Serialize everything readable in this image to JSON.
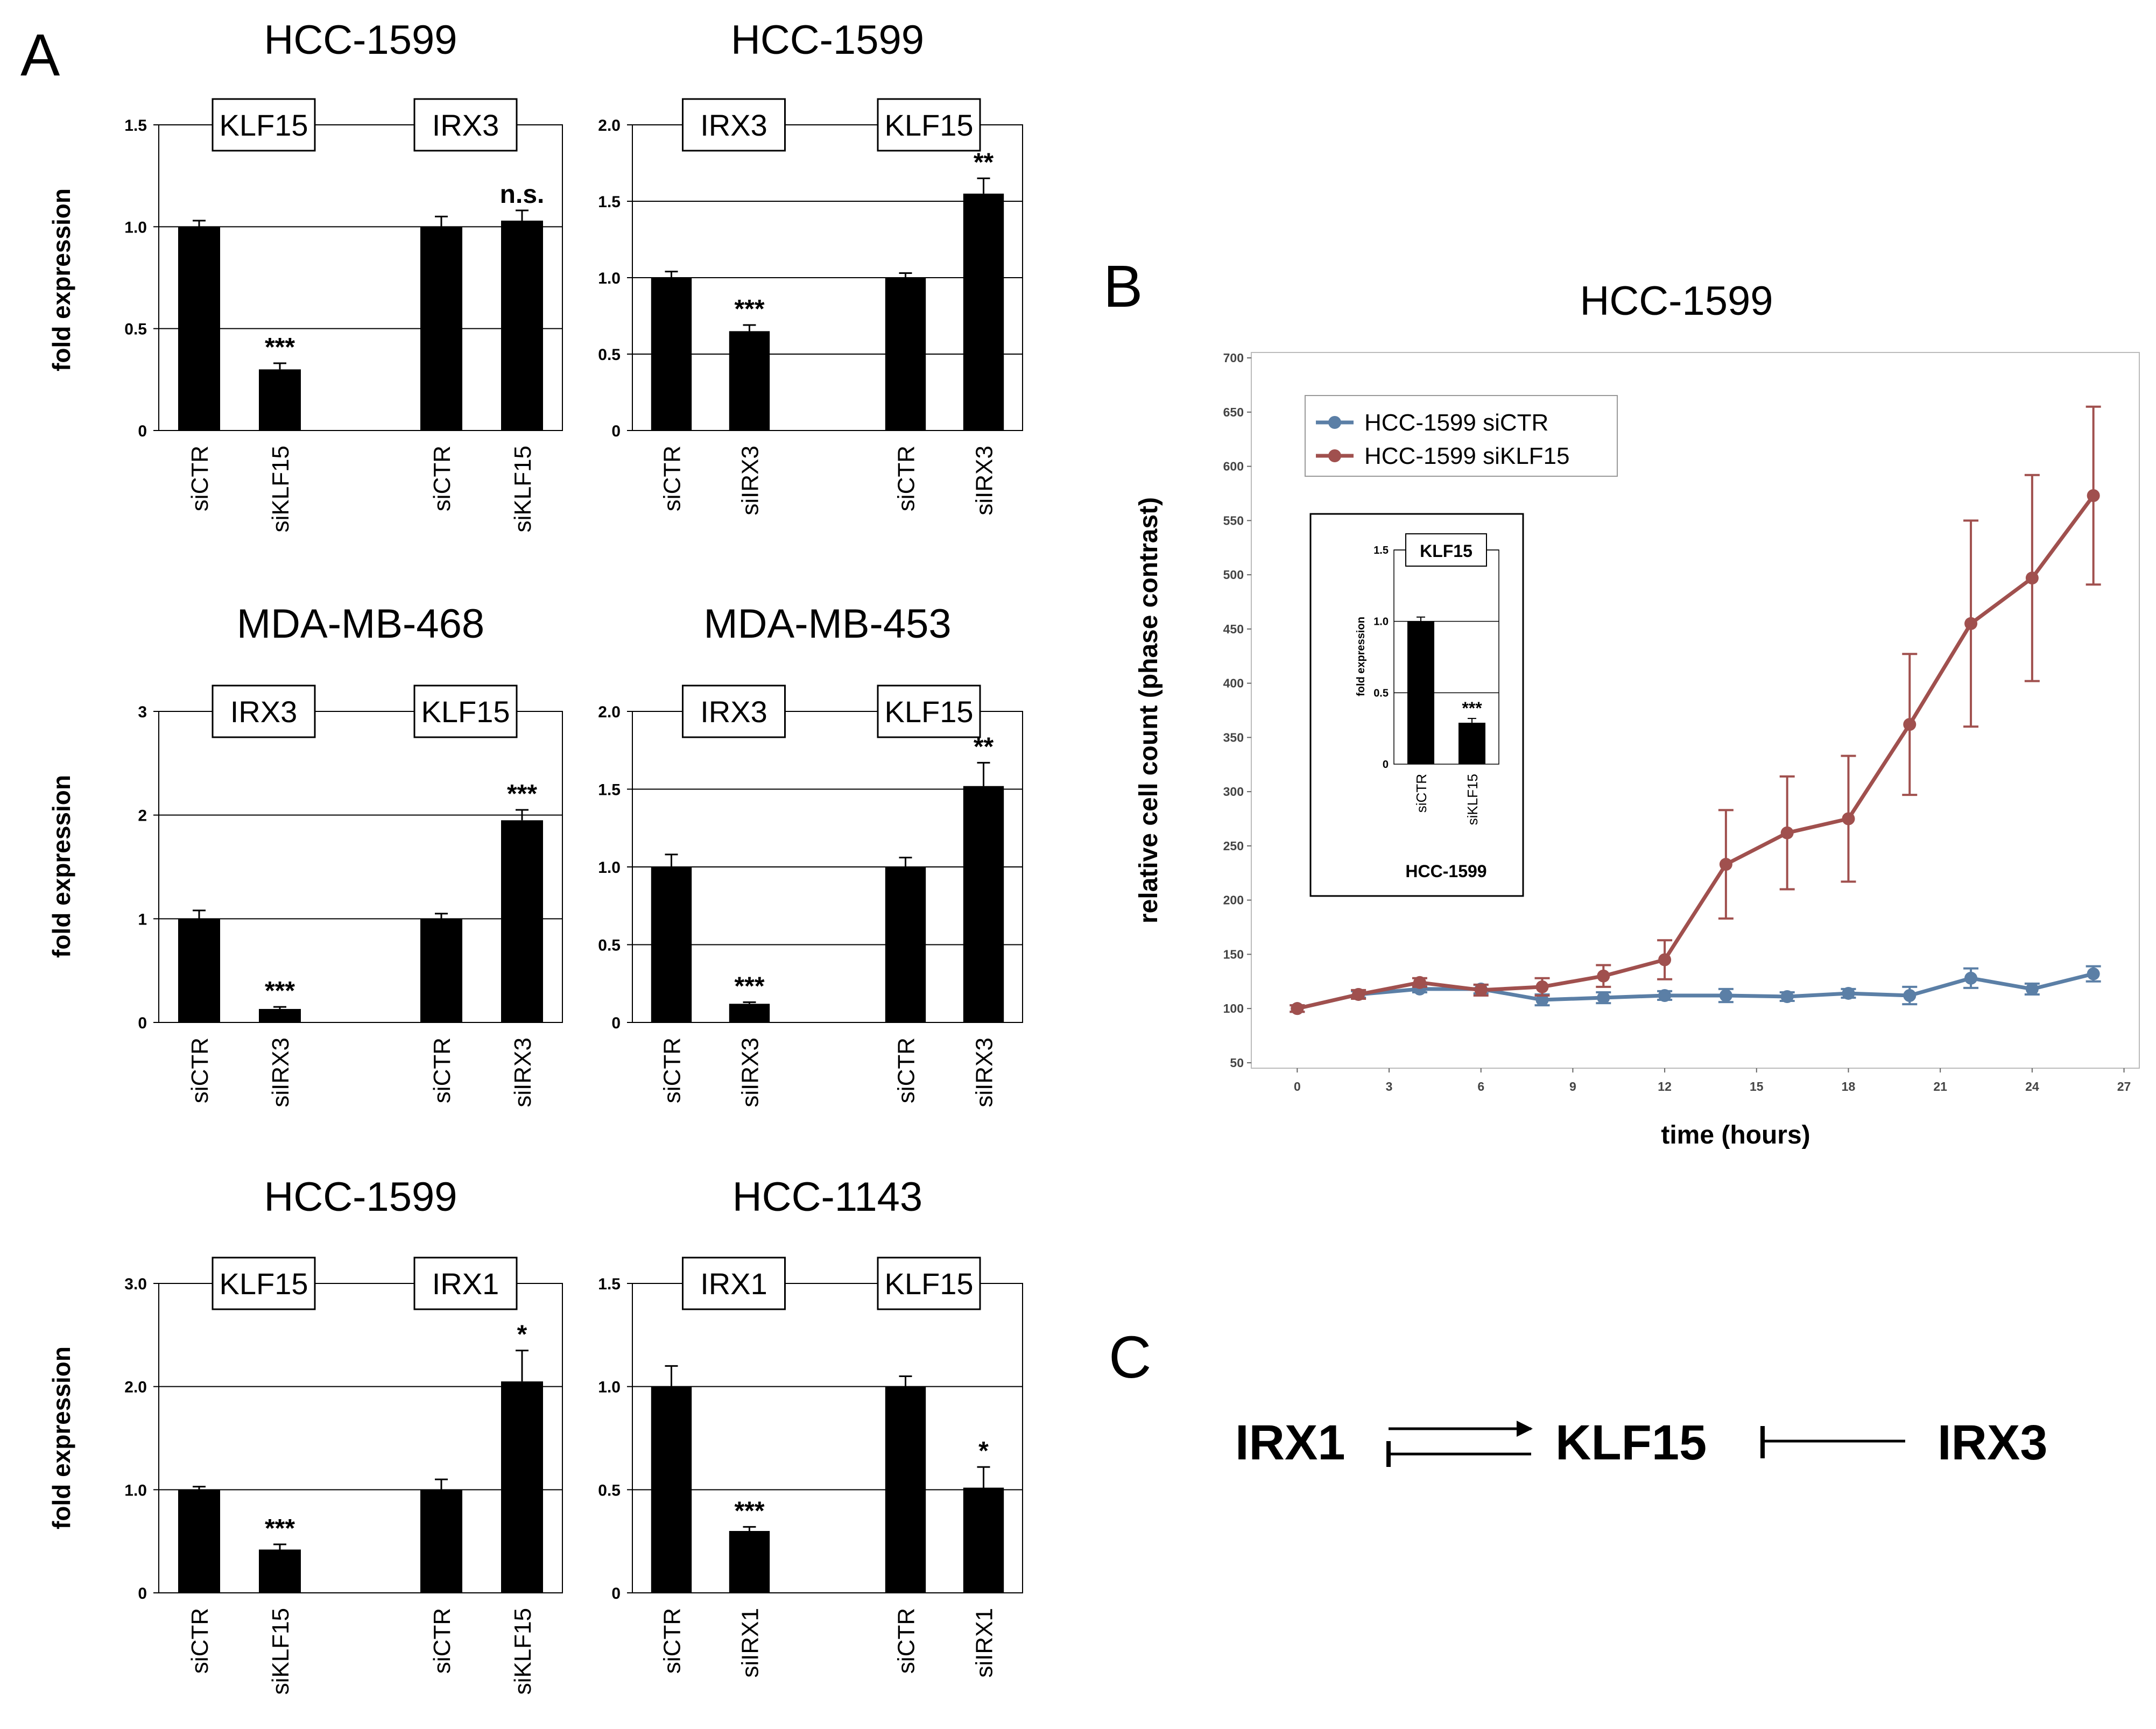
{
  "panel_labels": {
    "a": "A",
    "b": "B",
    "c": "C"
  },
  "chart_data": [
    {
      "type": "bar",
      "title": "HCC-1599",
      "ylabel": "fold expression",
      "ylim": [
        0,
        1.5
      ],
      "yticks": [
        "0",
        "0.5",
        "1.0",
        "1.5"
      ],
      "groups": [
        {
          "gene": "KLF15",
          "categories": [
            "siCTR",
            "siKLF15"
          ],
          "values": [
            1.0,
            0.3
          ],
          "errors": [
            0.03,
            0.03
          ],
          "sig": [
            "",
            "***"
          ]
        },
        {
          "gene": "IRX3",
          "categories": [
            "siCTR",
            "siKLF15"
          ],
          "values": [
            1.0,
            1.03
          ],
          "errors": [
            0.05,
            0.05
          ],
          "sig": [
            "",
            "n.s."
          ]
        }
      ]
    },
    {
      "type": "bar",
      "title": "HCC-1599",
      "ylabel": "",
      "ylim": [
        0,
        2.0
      ],
      "yticks": [
        "0",
        "0.5",
        "1.0",
        "1.5",
        "2.0"
      ],
      "groups": [
        {
          "gene": "IRX3",
          "categories": [
            "siCTR",
            "siIRX3"
          ],
          "values": [
            1.0,
            0.65
          ],
          "errors": [
            0.04,
            0.04
          ],
          "sig": [
            "",
            "***"
          ]
        },
        {
          "gene": "KLF15",
          "categories": [
            "siCTR",
            "siIRX3"
          ],
          "values": [
            1.0,
            1.55
          ],
          "errors": [
            0.03,
            0.1
          ],
          "sig": [
            "",
            "**"
          ]
        }
      ]
    },
    {
      "type": "bar",
      "title": "MDA-MB-468",
      "ylabel": "fold expression",
      "ylim": [
        0,
        3
      ],
      "yticks": [
        "0",
        "1",
        "2",
        "3"
      ],
      "groups": [
        {
          "gene": "IRX3",
          "categories": [
            "siCTR",
            "siIRX3"
          ],
          "values": [
            1.0,
            0.13
          ],
          "errors": [
            0.08,
            0.02
          ],
          "sig": [
            "",
            "***"
          ]
        },
        {
          "gene": "KLF15",
          "categories": [
            "siCTR",
            "siIRX3"
          ],
          "values": [
            1.0,
            1.95
          ],
          "errors": [
            0.05,
            0.1
          ],
          "sig": [
            "",
            "***"
          ]
        }
      ]
    },
    {
      "type": "bar",
      "title": "MDA-MB-453",
      "ylabel": "",
      "ylim": [
        0,
        2.0
      ],
      "yticks": [
        "0",
        "0.5",
        "1.0",
        "1.5",
        "2.0"
      ],
      "groups": [
        {
          "gene": "IRX3",
          "categories": [
            "siCTR",
            "siIRX3"
          ],
          "values": [
            1.0,
            0.12
          ],
          "errors": [
            0.08,
            0.01
          ],
          "sig": [
            "",
            "***"
          ]
        },
        {
          "gene": "KLF15",
          "categories": [
            "siCTR",
            "siIRX3"
          ],
          "values": [
            1.0,
            1.52
          ],
          "errors": [
            0.06,
            0.15
          ],
          "sig": [
            "",
            "**"
          ]
        }
      ]
    },
    {
      "type": "bar",
      "title": "HCC-1599",
      "ylabel": "fold expression",
      "ylim": [
        0,
        3.0
      ],
      "yticks": [
        "0",
        "1.0",
        "2.0",
        "3.0"
      ],
      "groups": [
        {
          "gene": "KLF15",
          "categories": [
            "siCTR",
            "siKLF15"
          ],
          "values": [
            1.0,
            0.42
          ],
          "errors": [
            0.03,
            0.05
          ],
          "sig": [
            "",
            "***"
          ]
        },
        {
          "gene": "IRX1",
          "categories": [
            "siCTR",
            "siKLF15"
          ],
          "values": [
            1.0,
            2.05
          ],
          "errors": [
            0.1,
            0.3
          ],
          "sig": [
            "",
            "*"
          ]
        }
      ]
    },
    {
      "type": "bar",
      "title": "HCC-1143",
      "ylabel": "",
      "ylim": [
        0,
        1.5
      ],
      "yticks": [
        "0",
        "0.5",
        "1.0",
        "1.5"
      ],
      "groups": [
        {
          "gene": "IRX1",
          "categories": [
            "siCTR",
            "siIRX1"
          ],
          "values": [
            1.0,
            0.3
          ],
          "errors": [
            0.1,
            0.02
          ],
          "sig": [
            "",
            "***"
          ]
        },
        {
          "gene": "KLF15",
          "categories": [
            "siCTR",
            "siIRX1"
          ],
          "values": [
            1.0,
            0.51
          ],
          "errors": [
            0.05,
            0.1
          ],
          "sig": [
            "",
            "*"
          ]
        }
      ]
    },
    {
      "type": "line",
      "title": "HCC-1599",
      "xlabel": "time (hours)",
      "ylabel": "relative cell count (phase contrast)",
      "xlim": [
        -1.5,
        27.5
      ],
      "ylim": [
        45,
        705
      ],
      "xticks": [
        0,
        3,
        6,
        9,
        12,
        15,
        18,
        21,
        24,
        27
      ],
      "yticks": [
        50,
        100,
        150,
        200,
        250,
        300,
        350,
        400,
        450,
        500,
        550,
        600,
        650,
        700
      ],
      "series": [
        {
          "name": "HCC-1599 siCTR",
          "color": "#5b7fa6",
          "x": [
            0,
            2,
            4,
            6,
            8,
            10,
            12,
            14,
            16,
            18,
            20,
            22,
            24,
            26
          ],
          "y": [
            100,
            113,
            118,
            118,
            108,
            110,
            112,
            112,
            111,
            114,
            112,
            128,
            118,
            132
          ],
          "err": [
            3,
            3,
            3,
            4,
            5,
            5,
            4,
            6,
            4,
            4,
            8,
            9,
            5,
            7
          ]
        },
        {
          "name": "HCC-1599 siKLF15",
          "color": "#a0504e",
          "x": [
            0,
            2,
            4,
            6,
            8,
            10,
            12,
            14,
            16,
            18,
            20,
            22,
            24,
            26
          ],
          "y": [
            100,
            113,
            124,
            117,
            120,
            130,
            145,
            233,
            262,
            275,
            362,
            455,
            497,
            573
          ],
          "err": [
            3,
            4,
            4,
            5,
            8,
            10,
            18,
            50,
            52,
            58,
            65,
            95,
            95,
            82
          ]
        }
      ]
    },
    {
      "type": "bar",
      "title": "KLF15",
      "xlabel": "HCC-1599",
      "ylabel": "fold expression",
      "ylim": [
        0,
        1.5
      ],
      "yticks": [
        "0",
        "0.5",
        "1.0",
        "1.5"
      ],
      "categories": [
        "siCTR",
        "siKLF15"
      ],
      "values": [
        1.0,
        0.29
      ],
      "errors": [
        0.03,
        0.03
      ],
      "sig": [
        "",
        "***"
      ]
    }
  ],
  "diagram": {
    "left": "IRX1",
    "middle": "KLF15",
    "right": "IRX3"
  }
}
